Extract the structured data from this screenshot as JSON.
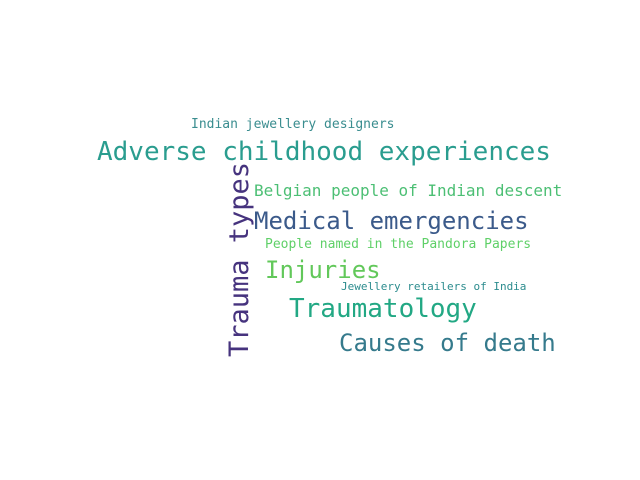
{
  "word_cloud": {
    "words": [
      {
        "key": "indian_jewellery_designers",
        "text": "Indian jewellery designers",
        "color": "#3a8d8f",
        "orientation": "horizontal"
      },
      {
        "key": "adverse_childhood_experiences",
        "text": "Adverse childhood experiences",
        "color": "#2a9d8f",
        "orientation": "horizontal"
      },
      {
        "key": "belgian_people",
        "text": "Belgian people of Indian descent",
        "color": "#4cbf74",
        "orientation": "horizontal"
      },
      {
        "key": "medical_emergencies",
        "text": "Medical emergencies",
        "color": "#3b5a8a",
        "orientation": "horizontal"
      },
      {
        "key": "pandora_papers",
        "text": "People named in the Pandora Papers",
        "color": "#5fd068",
        "orientation": "horizontal"
      },
      {
        "key": "injuries",
        "text": "Injuries",
        "color": "#62c85a",
        "orientation": "horizontal"
      },
      {
        "key": "jewellery_retailers",
        "text": "Jewellery retailers of India",
        "color": "#2c8c8e",
        "orientation": "horizontal"
      },
      {
        "key": "traumatology",
        "text": "Traumatology",
        "color": "#22a884",
        "orientation": "horizontal"
      },
      {
        "key": "causes_of_death",
        "text": "Causes of death",
        "color": "#357a8c",
        "orientation": "horizontal"
      },
      {
        "key": "trauma_types",
        "text": "Trauma types",
        "color": "#46337e",
        "orientation": "vertical"
      }
    ]
  }
}
